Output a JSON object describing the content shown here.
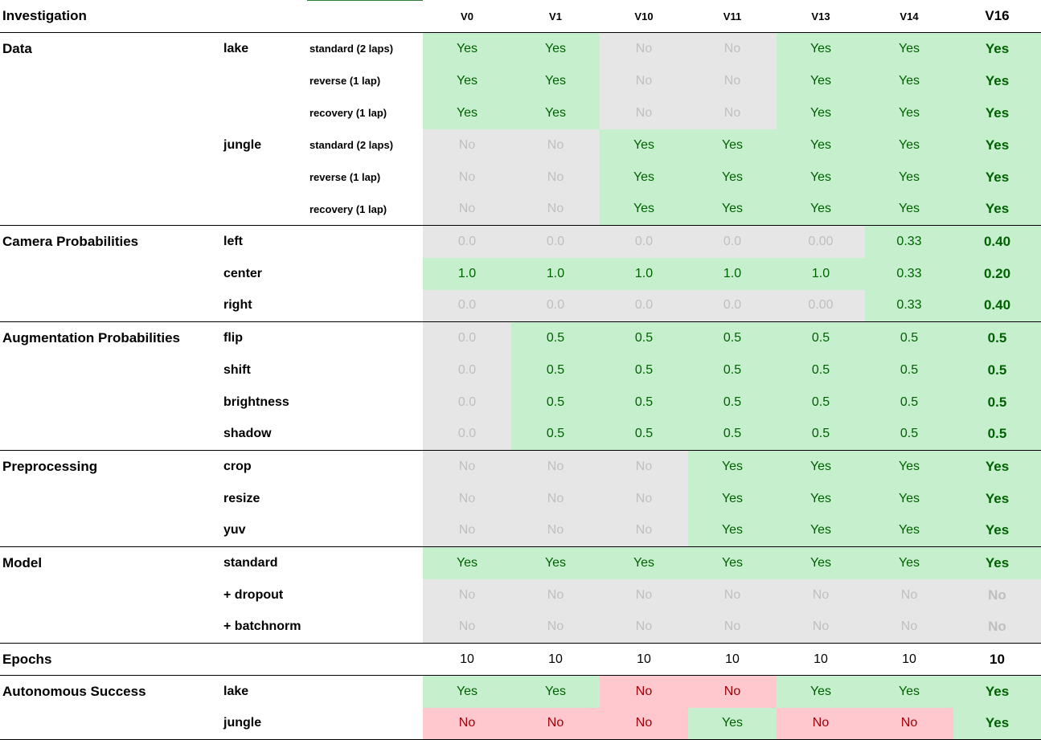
{
  "header": {
    "investigation": "Investigation",
    "versions": [
      "V0",
      "V1",
      "V10",
      "V11",
      "V13",
      "V14",
      "V16"
    ]
  },
  "rows": [
    {
      "sec": "Data",
      "sub": "lake",
      "sub3": "standard (2 laps)",
      "vals": [
        "Yes",
        "Yes",
        "No",
        "No",
        "Yes",
        "Yes",
        "Yes"
      ],
      "cls": [
        "g",
        "g",
        "n",
        "n",
        "g",
        "g",
        "g"
      ]
    },
    {
      "sec": "",
      "sub": "",
      "sub3": "reverse (1 lap)",
      "vals": [
        "Yes",
        "Yes",
        "No",
        "No",
        "Yes",
        "Yes",
        "Yes"
      ],
      "cls": [
        "g",
        "g",
        "n",
        "n",
        "g",
        "g",
        "g"
      ]
    },
    {
      "sec": "",
      "sub": "",
      "sub3": "recovery (1 lap)",
      "vals": [
        "Yes",
        "Yes",
        "No",
        "No",
        "Yes",
        "Yes",
        "Yes"
      ],
      "cls": [
        "g",
        "g",
        "n",
        "n",
        "g",
        "g",
        "g"
      ]
    },
    {
      "sec": "",
      "sub": "jungle",
      "sub3": "standard (2 laps)",
      "vals": [
        "No",
        "No",
        "Yes",
        "Yes",
        "Yes",
        "Yes",
        "Yes"
      ],
      "cls": [
        "n",
        "n",
        "g",
        "g",
        "g",
        "g",
        "g"
      ]
    },
    {
      "sec": "",
      "sub": "",
      "sub3": "reverse (1 lap)",
      "vals": [
        "No",
        "No",
        "Yes",
        "Yes",
        "Yes",
        "Yes",
        "Yes"
      ],
      "cls": [
        "n",
        "n",
        "g",
        "g",
        "g",
        "g",
        "g"
      ]
    },
    {
      "sec": "",
      "sub": "",
      "sub3": "recovery (1 lap)",
      "vals": [
        "No",
        "No",
        "Yes",
        "Yes",
        "Yes",
        "Yes",
        "Yes"
      ],
      "cls": [
        "n",
        "n",
        "g",
        "g",
        "g",
        "g",
        "g"
      ],
      "sep": true
    },
    {
      "sec": "Camera Probabilities",
      "sub": "left",
      "sub3": "",
      "vals": [
        "0.0",
        "0.0",
        "0.0",
        "0.0",
        "0.00",
        "0.33",
        "0.40"
      ],
      "cls": [
        "n",
        "n",
        "n",
        "n",
        "n",
        "g",
        "g"
      ]
    },
    {
      "sec": "",
      "sub": "center",
      "sub3": "",
      "vals": [
        "1.0",
        "1.0",
        "1.0",
        "1.0",
        "1.0",
        "0.33",
        "0.20"
      ],
      "cls": [
        "g",
        "g",
        "g",
        "g",
        "g",
        "g",
        "g"
      ]
    },
    {
      "sec": "",
      "sub": "right",
      "sub3": "",
      "vals": [
        "0.0",
        "0.0",
        "0.0",
        "0.0",
        "0.00",
        "0.33",
        "0.40"
      ],
      "cls": [
        "n",
        "n",
        "n",
        "n",
        "n",
        "g",
        "g"
      ],
      "sep": true
    },
    {
      "sec": "Augmentation Probabilities",
      "sub": "flip",
      "sub3": "",
      "vals": [
        "0.0",
        "0.5",
        "0.5",
        "0.5",
        "0.5",
        "0.5",
        "0.5"
      ],
      "cls": [
        "n",
        "g",
        "g",
        "g",
        "g",
        "g",
        "g"
      ]
    },
    {
      "sec": "",
      "sub": "shift",
      "sub3": "",
      "vals": [
        "0.0",
        "0.5",
        "0.5",
        "0.5",
        "0.5",
        "0.5",
        "0.5"
      ],
      "cls": [
        "n",
        "g",
        "g",
        "g",
        "g",
        "g",
        "g"
      ]
    },
    {
      "sec": "",
      "sub": "brightness",
      "sub3": "",
      "vals": [
        "0.0",
        "0.5",
        "0.5",
        "0.5",
        "0.5",
        "0.5",
        "0.5"
      ],
      "cls": [
        "n",
        "g",
        "g",
        "g",
        "g",
        "g",
        "g"
      ]
    },
    {
      "sec": "",
      "sub": "shadow",
      "sub3": "",
      "vals": [
        "0.0",
        "0.5",
        "0.5",
        "0.5",
        "0.5",
        "0.5",
        "0.5"
      ],
      "cls": [
        "n",
        "g",
        "g",
        "g",
        "g",
        "g",
        "g"
      ],
      "sep": true
    },
    {
      "sec": "Preprocessing",
      "sub": "crop",
      "sub3": "",
      "vals": [
        "No",
        "No",
        "No",
        "Yes",
        "Yes",
        "Yes",
        "Yes"
      ],
      "cls": [
        "n",
        "n",
        "n",
        "g",
        "g",
        "g",
        "g"
      ]
    },
    {
      "sec": "",
      "sub": "resize",
      "sub3": "",
      "vals": [
        "No",
        "No",
        "No",
        "Yes",
        "Yes",
        "Yes",
        "Yes"
      ],
      "cls": [
        "n",
        "n",
        "n",
        "g",
        "g",
        "g",
        "g"
      ]
    },
    {
      "sec": "",
      "sub": "yuv",
      "sub3": "",
      "vals": [
        "No",
        "No",
        "No",
        "Yes",
        "Yes",
        "Yes",
        "Yes"
      ],
      "cls": [
        "n",
        "n",
        "n",
        "g",
        "g",
        "g",
        "g"
      ],
      "sep": true
    },
    {
      "sec": "Model",
      "sub": "standard",
      "sub3": "",
      "vals": [
        "Yes",
        "Yes",
        "Yes",
        "Yes",
        "Yes",
        "Yes",
        "Yes"
      ],
      "cls": [
        "g",
        "g",
        "g",
        "g",
        "g",
        "g",
        "g"
      ]
    },
    {
      "sec": "",
      "sub": "+ dropout",
      "sub3": "",
      "vals": [
        "No",
        "No",
        "No",
        "No",
        "No",
        "No",
        "No"
      ],
      "cls": [
        "n",
        "n",
        "n",
        "n",
        "n",
        "n",
        "n"
      ]
    },
    {
      "sec": "",
      "sub": "+ batchnorm",
      "sub3": "",
      "vals": [
        "No",
        "No",
        "No",
        "No",
        "No",
        "No",
        "No"
      ],
      "cls": [
        "n",
        "n",
        "n",
        "n",
        "n",
        "n",
        "n"
      ],
      "sep": true
    },
    {
      "sec": "Epochs",
      "sub": "",
      "sub3": "",
      "vals": [
        "10",
        "10",
        "10",
        "10",
        "10",
        "10",
        "10"
      ],
      "cls": [
        "w",
        "w",
        "w",
        "w",
        "w",
        "w",
        "w"
      ],
      "sep": true
    },
    {
      "sec": "Autonomous Success",
      "sub": "lake",
      "sub3": "",
      "vals": [
        "Yes",
        "Yes",
        "No",
        "No",
        "Yes",
        "Yes",
        "Yes"
      ],
      "cls": [
        "g",
        "g",
        "r",
        "r",
        "g",
        "g",
        "g"
      ]
    },
    {
      "sec": "",
      "sub": "jungle",
      "sub3": "",
      "vals": [
        "No",
        "No",
        "No",
        "Yes",
        "No",
        "No",
        "Yes"
      ],
      "cls": [
        "r",
        "r",
        "r",
        "g",
        "r",
        "r",
        "g"
      ],
      "sep": true
    }
  ],
  "colors": {
    "green_fill": "#c6efce",
    "green_text": "#006100",
    "gray_fill": "#e7e6e6",
    "gray_text": "#bfbfbf",
    "red_fill": "#ffc7ce",
    "red_text": "#9c0006"
  }
}
